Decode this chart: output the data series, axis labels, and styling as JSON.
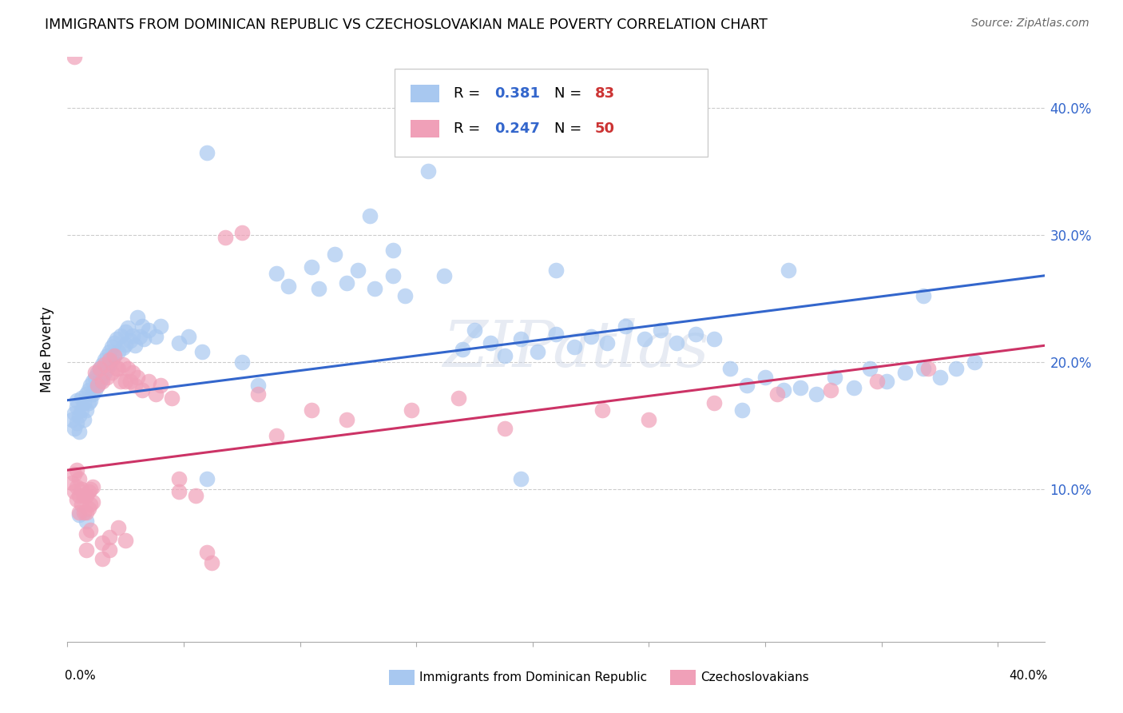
{
  "title": "IMMIGRANTS FROM DOMINICAN REPUBLIC VS CZECHOSLOVAKIAN MALE POVERTY CORRELATION CHART",
  "source": "Source: ZipAtlas.com",
  "ylabel": "Male Poverty",
  "xlim": [
    0.0,
    0.42
  ],
  "ylim": [
    -0.02,
    0.44
  ],
  "scatter1_color": "#a8c8f0",
  "scatter2_color": "#f0a0b8",
  "line1_color": "#3366cc",
  "line2_color": "#cc3366",
  "line1_x": [
    0.0,
    0.42
  ],
  "line1_y": [
    0.17,
    0.268
  ],
  "line2_x": [
    0.0,
    0.42
  ],
  "line2_y": [
    0.115,
    0.213
  ],
  "blue_points": [
    [
      0.002,
      0.155
    ],
    [
      0.003,
      0.148
    ],
    [
      0.003,
      0.16
    ],
    [
      0.004,
      0.152
    ],
    [
      0.004,
      0.165
    ],
    [
      0.004,
      0.17
    ],
    [
      0.005,
      0.158
    ],
    [
      0.005,
      0.145
    ],
    [
      0.006,
      0.162
    ],
    [
      0.006,
      0.172
    ],
    [
      0.007,
      0.168
    ],
    [
      0.007,
      0.155
    ],
    [
      0.008,
      0.175
    ],
    [
      0.008,
      0.162
    ],
    [
      0.009,
      0.178
    ],
    [
      0.009,
      0.168
    ],
    [
      0.01,
      0.182
    ],
    [
      0.01,
      0.17
    ],
    [
      0.011,
      0.185
    ],
    [
      0.011,
      0.175
    ],
    [
      0.012,
      0.188
    ],
    [
      0.012,
      0.178
    ],
    [
      0.013,
      0.192
    ],
    [
      0.013,
      0.182
    ],
    [
      0.014,
      0.195
    ],
    [
      0.014,
      0.185
    ],
    [
      0.015,
      0.198
    ],
    [
      0.015,
      0.188
    ],
    [
      0.016,
      0.202
    ],
    [
      0.016,
      0.192
    ],
    [
      0.017,
      0.205
    ],
    [
      0.017,
      0.195
    ],
    [
      0.018,
      0.208
    ],
    [
      0.018,
      0.198
    ],
    [
      0.019,
      0.212
    ],
    [
      0.019,
      0.202
    ],
    [
      0.02,
      0.215
    ],
    [
      0.02,
      0.205
    ],
    [
      0.021,
      0.218
    ],
    [
      0.022,
      0.208
    ],
    [
      0.023,
      0.221
    ],
    [
      0.024,
      0.211
    ],
    [
      0.025,
      0.224
    ],
    [
      0.025,
      0.214
    ],
    [
      0.026,
      0.227
    ],
    [
      0.027,
      0.217
    ],
    [
      0.028,
      0.221
    ],
    [
      0.029,
      0.213
    ],
    [
      0.03,
      0.235
    ],
    [
      0.031,
      0.22
    ],
    [
      0.032,
      0.228
    ],
    [
      0.033,
      0.218
    ],
    [
      0.035,
      0.225
    ],
    [
      0.038,
      0.22
    ],
    [
      0.04,
      0.228
    ],
    [
      0.048,
      0.215
    ],
    [
      0.052,
      0.22
    ],
    [
      0.058,
      0.208
    ],
    [
      0.005,
      0.08
    ],
    [
      0.008,
      0.075
    ],
    [
      0.06,
      0.108
    ],
    [
      0.075,
      0.2
    ],
    [
      0.082,
      0.182
    ],
    [
      0.09,
      0.27
    ],
    [
      0.095,
      0.26
    ],
    [
      0.105,
      0.275
    ],
    [
      0.108,
      0.258
    ],
    [
      0.115,
      0.285
    ],
    [
      0.12,
      0.262
    ],
    [
      0.125,
      0.272
    ],
    [
      0.132,
      0.258
    ],
    [
      0.14,
      0.268
    ],
    [
      0.145,
      0.252
    ],
    [
      0.155,
      0.35
    ],
    [
      0.162,
      0.268
    ],
    [
      0.17,
      0.21
    ],
    [
      0.175,
      0.225
    ],
    [
      0.182,
      0.215
    ],
    [
      0.188,
      0.205
    ],
    [
      0.195,
      0.218
    ],
    [
      0.202,
      0.208
    ],
    [
      0.21,
      0.222
    ],
    [
      0.218,
      0.212
    ],
    [
      0.225,
      0.22
    ],
    [
      0.232,
      0.215
    ],
    [
      0.24,
      0.228
    ],
    [
      0.248,
      0.218
    ],
    [
      0.255,
      0.225
    ],
    [
      0.262,
      0.215
    ],
    [
      0.27,
      0.222
    ],
    [
      0.278,
      0.218
    ],
    [
      0.285,
      0.195
    ],
    [
      0.292,
      0.182
    ],
    [
      0.3,
      0.188
    ],
    [
      0.308,
      0.178
    ],
    [
      0.315,
      0.18
    ],
    [
      0.322,
      0.175
    ],
    [
      0.33,
      0.188
    ],
    [
      0.338,
      0.18
    ],
    [
      0.345,
      0.195
    ],
    [
      0.352,
      0.185
    ],
    [
      0.36,
      0.192
    ],
    [
      0.368,
      0.195
    ],
    [
      0.375,
      0.188
    ],
    [
      0.382,
      0.195
    ],
    [
      0.39,
      0.2
    ],
    [
      0.06,
      0.365
    ],
    [
      0.13,
      0.315
    ],
    [
      0.14,
      0.288
    ],
    [
      0.21,
      0.272
    ],
    [
      0.31,
      0.272
    ],
    [
      0.368,
      0.252
    ],
    [
      0.195,
      0.108
    ],
    [
      0.29,
      0.162
    ]
  ],
  "pink_points": [
    [
      0.002,
      0.105
    ],
    [
      0.003,
      0.098
    ],
    [
      0.003,
      0.112
    ],
    [
      0.004,
      0.102
    ],
    [
      0.004,
      0.115
    ],
    [
      0.004,
      0.092
    ],
    [
      0.005,
      0.108
    ],
    [
      0.005,
      0.095
    ],
    [
      0.005,
      0.082
    ],
    [
      0.006,
      0.1
    ],
    [
      0.006,
      0.088
    ],
    [
      0.007,
      0.095
    ],
    [
      0.007,
      0.082
    ],
    [
      0.008,
      0.095
    ],
    [
      0.008,
      0.082
    ],
    [
      0.009,
      0.098
    ],
    [
      0.009,
      0.085
    ],
    [
      0.01,
      0.1
    ],
    [
      0.01,
      0.088
    ],
    [
      0.011,
      0.102
    ],
    [
      0.011,
      0.09
    ],
    [
      0.012,
      0.192
    ],
    [
      0.013,
      0.182
    ],
    [
      0.014,
      0.195
    ],
    [
      0.015,
      0.185
    ],
    [
      0.016,
      0.198
    ],
    [
      0.017,
      0.188
    ],
    [
      0.018,
      0.202
    ],
    [
      0.019,
      0.192
    ],
    [
      0.02,
      0.205
    ],
    [
      0.021,
      0.195
    ],
    [
      0.022,
      0.195
    ],
    [
      0.023,
      0.185
    ],
    [
      0.024,
      0.198
    ],
    [
      0.025,
      0.185
    ],
    [
      0.026,
      0.195
    ],
    [
      0.027,
      0.185
    ],
    [
      0.028,
      0.192
    ],
    [
      0.029,
      0.182
    ],
    [
      0.03,
      0.188
    ],
    [
      0.032,
      0.178
    ],
    [
      0.035,
      0.185
    ],
    [
      0.038,
      0.175
    ],
    [
      0.04,
      0.182
    ],
    [
      0.045,
      0.172
    ],
    [
      0.003,
      0.44
    ],
    [
      0.008,
      0.065
    ],
    [
      0.008,
      0.052
    ],
    [
      0.01,
      0.068
    ],
    [
      0.015,
      0.058
    ],
    [
      0.015,
      0.045
    ],
    [
      0.018,
      0.062
    ],
    [
      0.018,
      0.052
    ],
    [
      0.022,
      0.07
    ],
    [
      0.025,
      0.06
    ],
    [
      0.048,
      0.108
    ],
    [
      0.048,
      0.098
    ],
    [
      0.055,
      0.095
    ],
    [
      0.06,
      0.05
    ],
    [
      0.062,
      0.042
    ],
    [
      0.068,
      0.298
    ],
    [
      0.075,
      0.302
    ],
    [
      0.082,
      0.175
    ],
    [
      0.09,
      0.142
    ],
    [
      0.105,
      0.162
    ],
    [
      0.12,
      0.155
    ],
    [
      0.148,
      0.162
    ],
    [
      0.168,
      0.172
    ],
    [
      0.188,
      0.148
    ],
    [
      0.23,
      0.162
    ],
    [
      0.25,
      0.155
    ],
    [
      0.278,
      0.168
    ],
    [
      0.305,
      0.175
    ],
    [
      0.328,
      0.178
    ],
    [
      0.348,
      0.185
    ],
    [
      0.37,
      0.195
    ]
  ]
}
